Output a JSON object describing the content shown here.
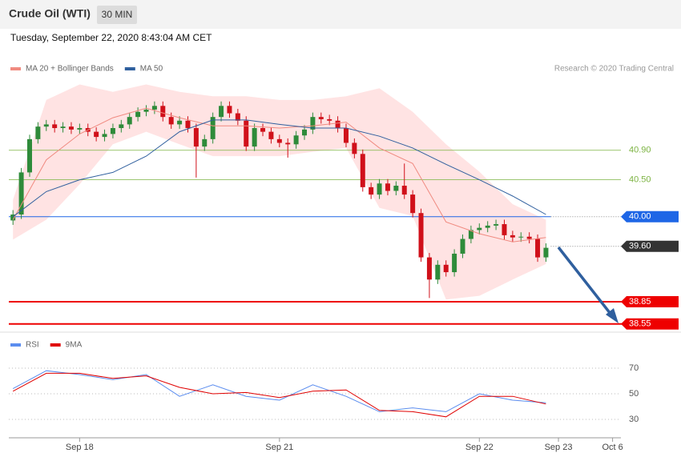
{
  "header": {
    "title": "Crude Oil (WTI)",
    "interval": "30 MIN",
    "timestamp": "Tuesday, September 22, 2020 8:43:04 AM CET"
  },
  "chart_data": [
    {
      "type": "candlestick",
      "credit": "Research © 2020 Trading Central",
      "up_color": "#2e8b3a",
      "down_color": "#d0101a",
      "x": [
        0,
        1,
        2,
        3,
        4,
        5,
        6,
        7,
        8,
        9,
        10,
        11,
        12,
        13,
        14,
        15,
        16,
        17,
        18,
        19,
        20,
        21,
        22,
        23,
        24,
        25,
        26,
        27,
        28,
        29,
        30,
        31,
        32,
        33,
        34,
        35,
        36,
        37,
        38,
        39,
        40,
        41,
        42,
        43,
        44,
        45,
        46,
        47,
        48,
        49,
        50,
        51,
        52,
        53,
        54,
        55,
        56,
        57,
        58,
        59,
        60,
        61,
        62,
        63,
        64
      ],
      "open": [
        39.95,
        40.03,
        40.6,
        41.05,
        41.22,
        41.25,
        41.2,
        41.22,
        41.18,
        41.2,
        41.15,
        41.08,
        41.12,
        41.2,
        41.25,
        41.35,
        41.42,
        41.45,
        41.5,
        41.35,
        41.25,
        41.3,
        41.2,
        40.95,
        41.05,
        41.35,
        41.5,
        41.4,
        41.3,
        40.95,
        41.2,
        41.15,
        41.05,
        41.0,
        40.98,
        41.1,
        41.18,
        41.35,
        41.32,
        41.3,
        41.2,
        41.0,
        40.85,
        40.4,
        40.3,
        40.45,
        40.35,
        40.42,
        40.3,
        40.05,
        39.45,
        39.15,
        39.35,
        39.25,
        39.5,
        39.7,
        39.82,
        39.85,
        39.88,
        39.9,
        39.75,
        39.72,
        39.73,
        39.7,
        39.45
      ],
      "high": [
        40.09,
        40.66,
        41.11,
        41.28,
        41.31,
        41.31,
        41.28,
        41.28,
        41.26,
        41.26,
        41.21,
        41.18,
        41.26,
        41.31,
        41.41,
        41.48,
        41.51,
        41.56,
        41.56,
        41.41,
        41.36,
        41.36,
        41.26,
        41.11,
        41.41,
        41.56,
        41.56,
        41.46,
        41.36,
        41.26,
        41.26,
        41.21,
        41.11,
        41.06,
        41.16,
        41.24,
        41.41,
        41.41,
        41.38,
        41.36,
        41.26,
        41.06,
        40.91,
        40.46,
        40.51,
        40.51,
        40.48,
        40.72,
        40.36,
        40.11,
        39.51,
        39.41,
        39.41,
        39.56,
        39.76,
        39.88,
        39.91,
        39.94,
        39.96,
        39.96,
        39.81,
        39.79,
        39.79,
        39.76,
        39.64
      ],
      "low": [
        39.89,
        39.97,
        40.54,
        40.99,
        41.16,
        41.14,
        41.14,
        41.12,
        41.12,
        41.09,
        41.02,
        41.02,
        41.06,
        41.14,
        41.19,
        41.29,
        41.36,
        41.39,
        41.29,
        41.19,
        41.19,
        41.14,
        40.53,
        40.89,
        40.99,
        41.29,
        41.34,
        41.24,
        40.89,
        40.89,
        41.09,
        40.99,
        40.94,
        40.8,
        40.92,
        41.04,
        41.12,
        41.26,
        41.24,
        41.14,
        40.94,
        40.79,
        40.34,
        40.24,
        40.24,
        40.29,
        40.29,
        40.24,
        39.99,
        39.39,
        38.9,
        39.09,
        39.19,
        39.19,
        39.44,
        39.64,
        39.76,
        39.79,
        39.82,
        39.69,
        39.66,
        39.66,
        39.64,
        39.39,
        39.39
      ],
      "close": [
        40.03,
        40.6,
        41.05,
        41.22,
        41.25,
        41.2,
        41.22,
        41.18,
        41.2,
        41.15,
        41.08,
        41.12,
        41.2,
        41.25,
        41.35,
        41.42,
        41.45,
        41.5,
        41.35,
        41.25,
        41.3,
        41.2,
        40.95,
        41.05,
        41.35,
        41.5,
        41.4,
        41.3,
        40.95,
        41.2,
        41.15,
        41.05,
        41.0,
        40.98,
        41.1,
        41.18,
        41.35,
        41.32,
        41.3,
        41.2,
        41.0,
        40.85,
        40.4,
        40.3,
        40.45,
        40.35,
        40.42,
        40.3,
        40.05,
        39.45,
        39.15,
        39.35,
        39.25,
        39.5,
        39.7,
        39.82,
        39.85,
        39.88,
        39.9,
        39.75,
        39.72,
        39.73,
        39.7,
        39.45,
        39.58
      ],
      "xlim": [
        -0.5,
        73
      ],
      "ylim": [
        38.46,
        41.85
      ],
      "levels": [
        {
          "value": 40.9,
          "label": "40.90",
          "color": "#7cb342",
          "style": "solid",
          "boxed": false
        },
        {
          "value": 40.5,
          "label": "40.50",
          "color": "#7cb342",
          "style": "solid",
          "boxed": false
        },
        {
          "value": 40,
          "label": "40.00",
          "color": "#1e66e6",
          "style": "solid-dotted",
          "boxed": true
        },
        {
          "value": 39.6,
          "label": "39.60",
          "color": "#333333",
          "style": "dotted",
          "boxed": true
        },
        {
          "value": 38.85,
          "label": "38.85",
          "color": "#ee0000",
          "style": "thick",
          "boxed": true
        },
        {
          "value": 38.55,
          "label": "38.55",
          "color": "#ee0000",
          "style": "thick",
          "boxed": true
        }
      ],
      "overlay_x": [
        0,
        4,
        8,
        12,
        16,
        20,
        24,
        28,
        32,
        36,
        40,
        44,
        48,
        52,
        56,
        60,
        64
      ],
      "overlays": [
        {
          "name": "MA 20 + Bollinger Bands",
          "color": "#f08a80",
          "band_color": "#ffe3e3",
          "values": [
            39.96,
            40.77,
            41.12,
            41.34,
            41.47,
            41.34,
            41.23,
            41.23,
            41.2,
            41.23,
            41.28,
            40.93,
            40.72,
            39.93,
            39.77,
            39.66,
            39.72
          ],
          "upper": [
            40.23,
            41.58,
            41.79,
            41.69,
            41.79,
            41.69,
            41.63,
            41.63,
            41.58,
            41.58,
            41.63,
            41.74,
            41.42,
            40.98,
            40.61,
            40.17,
            39.96
          ],
          "lower": [
            39.69,
            39.96,
            40.44,
            40.98,
            41.15,
            40.98,
            40.82,
            40.82,
            40.82,
            40.88,
            40.93,
            40.12,
            40.01,
            38.88,
            38.93,
            39.15,
            39.36
          ]
        },
        {
          "name": "MA 50",
          "color": "#2f5f9e",
          "values": [
            40.0,
            40.34,
            40.5,
            40.6,
            40.82,
            41.15,
            41.31,
            41.31,
            41.25,
            41.2,
            41.2,
            41.09,
            40.93,
            40.71,
            40.5,
            40.28,
            40.03
          ]
        }
      ]
    },
    {
      "type": "line",
      "x": [
        0,
        4,
        8,
        12,
        16,
        20,
        24,
        28,
        32,
        36,
        40,
        44,
        48,
        52,
        56,
        60,
        64
      ],
      "series": [
        {
          "name": "RSI",
          "color": "#5b8def",
          "values": [
            54,
            68,
            65,
            61,
            65,
            48,
            57,
            48,
            45,
            57,
            48,
            36,
            39,
            36,
            50,
            45,
            43
          ]
        },
        {
          "name": "9MA",
          "color": "#e00000",
          "values": [
            52,
            66,
            66,
            62,
            64,
            55,
            50,
            51,
            47,
            52,
            53,
            37,
            36,
            32,
            48,
            48,
            42
          ]
        }
      ],
      "xlim": [
        -0.5,
        73
      ],
      "ylim": [
        16.9,
        95
      ],
      "yticks": [
        70,
        50,
        30
      ],
      "grid": true,
      "xticks": [
        {
          "value": 8,
          "label": "Sep 18"
        },
        {
          "value": 32,
          "label": "Sep 21"
        },
        {
          "value": 56,
          "label": "Sep 22"
        },
        {
          "value": 65.5,
          "label": "Sep 23"
        },
        {
          "value": 72,
          "label": "Oct 6"
        }
      ]
    }
  ]
}
